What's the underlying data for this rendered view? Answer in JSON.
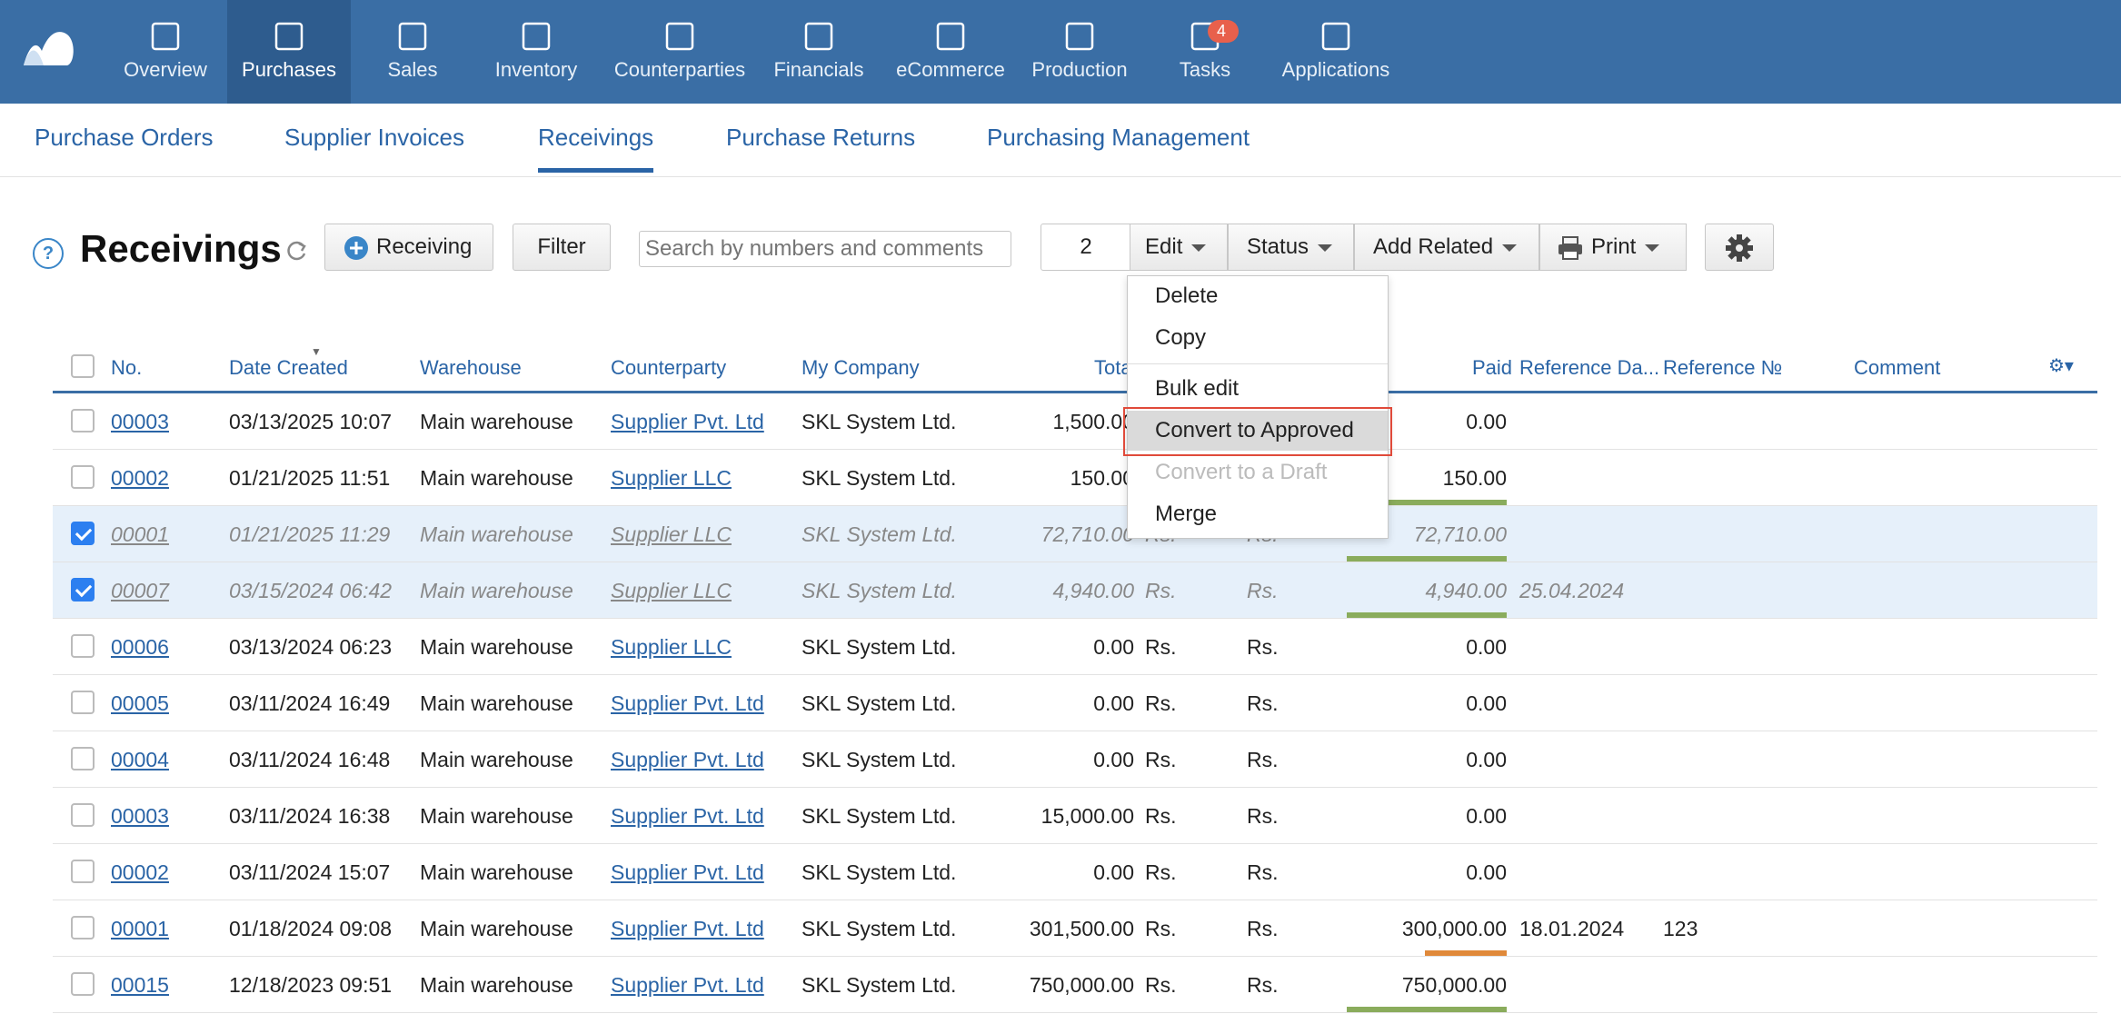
{
  "nav": {
    "items": [
      {
        "label": "Overview",
        "icon": "chart-line-icon"
      },
      {
        "label": "Purchases",
        "icon": "cart-hand-icon"
      },
      {
        "label": "Sales",
        "icon": "shopping-bag-icon"
      },
      {
        "label": "Inventory",
        "icon": "cart-icon"
      },
      {
        "label": "Counterparties",
        "icon": "users-icon"
      },
      {
        "label": "Financials",
        "icon": "wallet-icon"
      },
      {
        "label": "eCommerce",
        "icon": "shop-icon"
      },
      {
        "label": "Production",
        "icon": "factory-icon"
      },
      {
        "label": "Tasks",
        "icon": "checkbox-icon",
        "badge": "4"
      },
      {
        "label": "Applications",
        "icon": "apps-icon"
      }
    ],
    "active": "Purchases"
  },
  "subnav": {
    "tabs": [
      "Purchase Orders",
      "Supplier Invoices",
      "Receivings",
      "Purchase Returns",
      "Purchasing Management"
    ],
    "active": "Receivings"
  },
  "toolbar": {
    "help": "?",
    "title": "Receivings",
    "new_button": "Receiving",
    "filter_button": "Filter",
    "search_placeholder": "Search by numbers and comments",
    "selected_count": "2",
    "edit_button": "Edit",
    "status_button": "Status",
    "add_related_button": "Add Related",
    "print_button": "Print"
  },
  "edit_menu": {
    "items": [
      "Delete",
      "Copy",
      "Bulk edit",
      "Convert to Approved",
      "Convert to a Draft",
      "Merge"
    ],
    "disabled": [
      "Convert to a Draft"
    ],
    "highlighted": "Convert to Approved"
  },
  "table": {
    "columns": {
      "no": "No.",
      "date": "Date Created",
      "warehouse": "Warehouse",
      "counterparty": "Counterparty",
      "company": "My Company",
      "total": "Tota",
      "paid": "Paid",
      "refdate": "Reference Da...",
      "refno": "Reference №",
      "comment": "Comment"
    },
    "rows": [
      {
        "no": "00003",
        "date": "03/13/2025 10:07",
        "warehouse": "Main warehouse",
        "counterparty": "Supplier Pvt. Ltd",
        "company": "SKL System Ltd.",
        "total": "1,500.00",
        "cur1": "",
        "cur2": "",
        "paid": "0.00",
        "refdate": "",
        "refno": "",
        "checked": false,
        "bar": ""
      },
      {
        "no": "00002",
        "date": "01/21/2025 11:51",
        "warehouse": "Main warehouse",
        "counterparty": "Supplier LLC",
        "company": "SKL System Ltd.",
        "total": "150.00",
        "cur1": "",
        "cur2": "",
        "paid": "150.00",
        "refdate": "",
        "refno": "",
        "checked": false,
        "bar": "#8aac5c"
      },
      {
        "no": "00001",
        "date": "01/21/2025 11:29",
        "warehouse": "Main warehouse",
        "counterparty": "Supplier LLC",
        "company": "SKL System Ltd.",
        "total": "72,710.00",
        "cur1": "Rs.",
        "cur2": "Rs.",
        "paid": "72,710.00",
        "refdate": "",
        "refno": "",
        "checked": true,
        "bar": "#8aac5c"
      },
      {
        "no": "00007",
        "date": "03/15/2024 06:42",
        "warehouse": "Main warehouse",
        "counterparty": "Supplier LLC",
        "company": "SKL System Ltd.",
        "total": "4,940.00",
        "cur1": "Rs.",
        "cur2": "Rs.",
        "paid": "4,940.00",
        "refdate": "25.04.2024",
        "refno": "",
        "checked": true,
        "bar": "#8aac5c"
      },
      {
        "no": "00006",
        "date": "03/13/2024 06:23",
        "warehouse": "Main warehouse",
        "counterparty": "Supplier LLC",
        "company": "SKL System Ltd.",
        "total": "0.00",
        "cur1": "Rs.",
        "cur2": "Rs.",
        "paid": "0.00",
        "refdate": "",
        "refno": "",
        "checked": false,
        "bar": ""
      },
      {
        "no": "00005",
        "date": "03/11/2024 16:49",
        "warehouse": "Main warehouse",
        "counterparty": "Supplier Pvt. Ltd",
        "company": "SKL System Ltd.",
        "total": "0.00",
        "cur1": "Rs.",
        "cur2": "Rs.",
        "paid": "0.00",
        "refdate": "",
        "refno": "",
        "checked": false,
        "bar": ""
      },
      {
        "no": "00004",
        "date": "03/11/2024 16:48",
        "warehouse": "Main warehouse",
        "counterparty": "Supplier Pvt. Ltd",
        "company": "SKL System Ltd.",
        "total": "0.00",
        "cur1": "Rs.",
        "cur2": "Rs.",
        "paid": "0.00",
        "refdate": "",
        "refno": "",
        "checked": false,
        "bar": ""
      },
      {
        "no": "00003",
        "date": "03/11/2024 16:38",
        "warehouse": "Main warehouse",
        "counterparty": "Supplier Pvt. Ltd",
        "company": "SKL System Ltd.",
        "total": "15,000.00",
        "cur1": "Rs.",
        "cur2": "Rs.",
        "paid": "0.00",
        "refdate": "",
        "refno": "",
        "checked": false,
        "bar": ""
      },
      {
        "no": "00002",
        "date": "03/11/2024 15:07",
        "warehouse": "Main warehouse",
        "counterparty": "Supplier Pvt. Ltd",
        "company": "SKL System Ltd.",
        "total": "0.00",
        "cur1": "Rs.",
        "cur2": "Rs.",
        "paid": "0.00",
        "refdate": "",
        "refno": "",
        "checked": false,
        "bar": ""
      },
      {
        "no": "00001",
        "date": "01/18/2024 09:08",
        "warehouse": "Main warehouse",
        "counterparty": "Supplier Pvt. Ltd",
        "company": "SKL System Ltd.",
        "total": "301,500.00",
        "cur1": "Rs.",
        "cur2": "Rs.",
        "paid": "300,000.00",
        "refdate": "18.01.2024",
        "refno": "123",
        "checked": false,
        "bar": "#e0893a"
      },
      {
        "no": "00015",
        "date": "12/18/2023 09:51",
        "warehouse": "Main warehouse",
        "counterparty": "Supplier Pvt. Ltd",
        "company": "SKL System Ltd.",
        "total": "750,000.00",
        "cur1": "Rs.",
        "cur2": "Rs.",
        "paid": "750,000.00",
        "refdate": "",
        "refno": "",
        "checked": false,
        "bar": "#8aac5c"
      }
    ]
  },
  "colors": {
    "nav_bg": "#3a6ea5",
    "nav_active": "#2e5c8e",
    "link": "#2a64a6",
    "paid_full": "#8aac5c",
    "paid_partial": "#e0893a",
    "highlight_border": "#e04a3a"
  }
}
